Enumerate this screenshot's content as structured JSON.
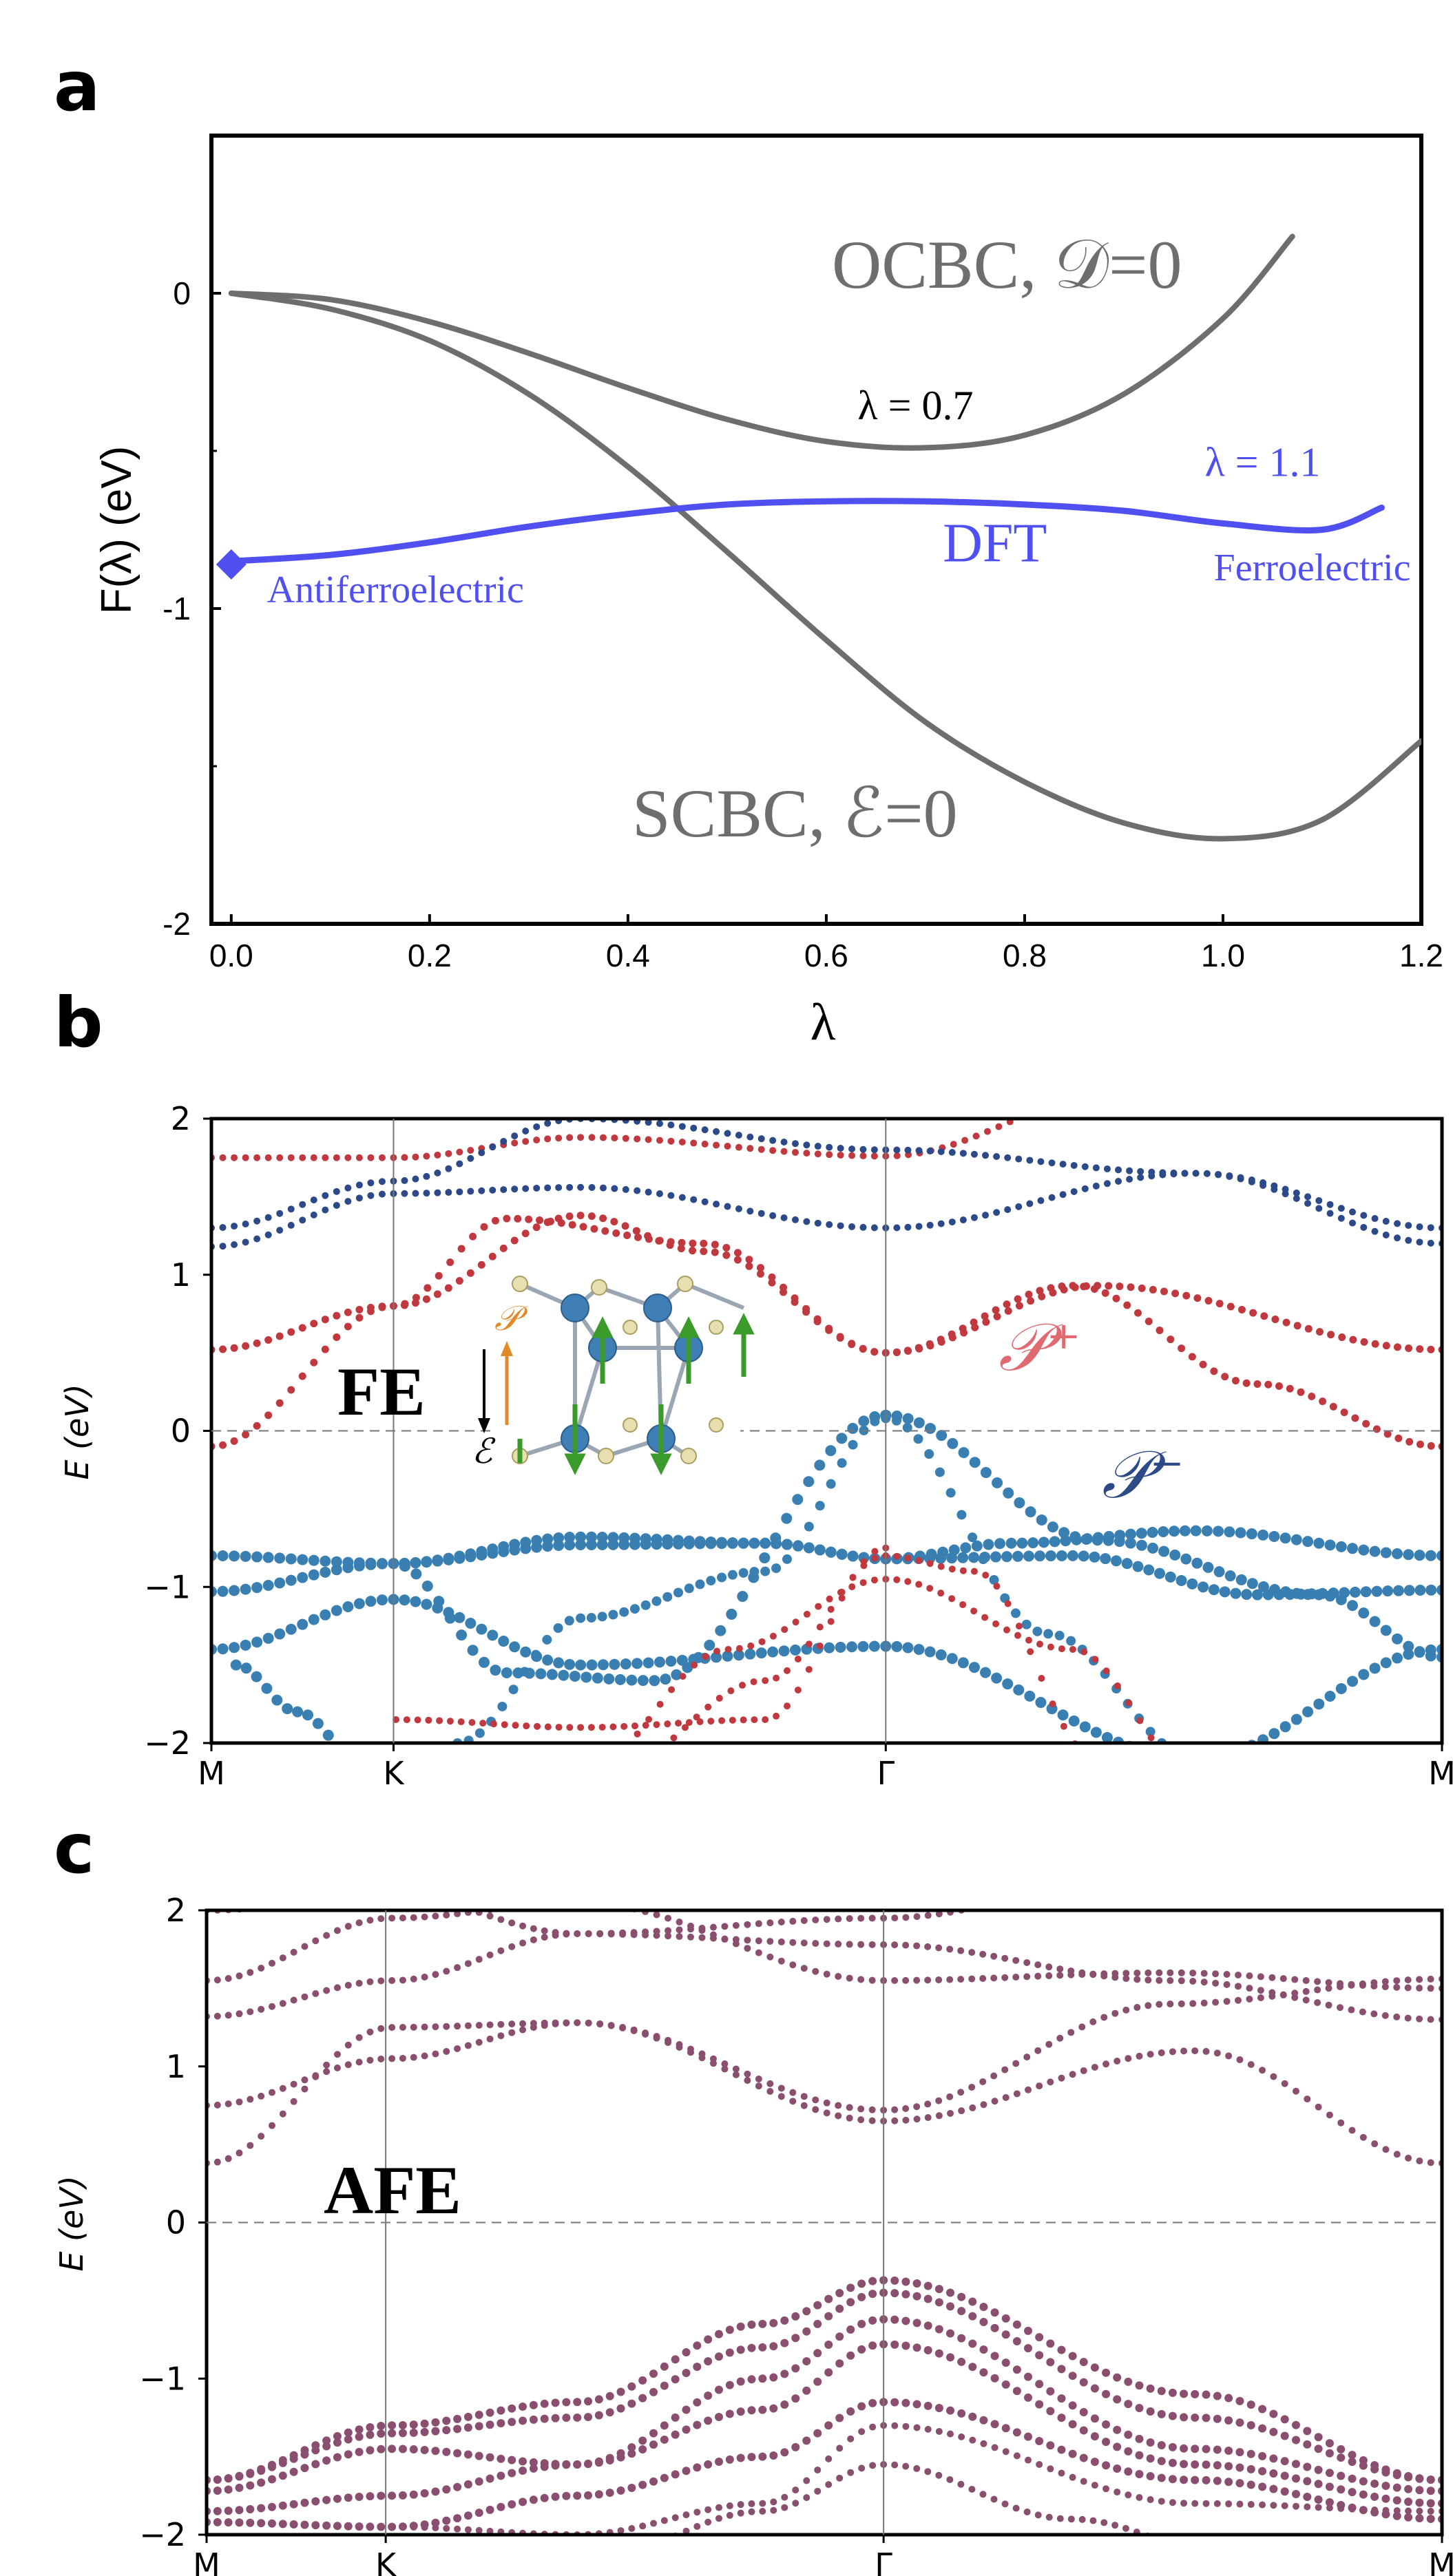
{
  "colors": {
    "gray": "#6e6e6e",
    "blue": "#5050f0",
    "red": "#c0393f",
    "steel": "#3a7fb2",
    "mixed": "#8a4f6e",
    "navy": "#2c4a87",
    "pink": "#e06a72",
    "orange": "#e08a2a",
    "green": "#3a9a2a"
  },
  "panels": {
    "a": "a",
    "b": "b",
    "c": "c"
  },
  "chart_data": [
    {
      "type": "line",
      "panel": "a",
      "xlabel": "λ",
      "ylabel": "F(λ) (eV)",
      "xlim": [
        -0.02,
        1.2
      ],
      "ylim": [
        -2,
        0.5
      ],
      "x_ticks": [
        "0.0",
        "0.2",
        "0.4",
        "0.6",
        "0.8",
        "1.0",
        "1.2"
      ],
      "y_ticks": [
        "0",
        "-1",
        "-2"
      ],
      "series": [
        {
          "name": "OCBC, 𝒟=0",
          "x": [
            0,
            0.1,
            0.2,
            0.3,
            0.4,
            0.5,
            0.6,
            0.7,
            0.8,
            0.9,
            1.0,
            1.07
          ],
          "y": [
            0,
            -0.02,
            -0.09,
            -0.19,
            -0.3,
            -0.4,
            -0.47,
            -0.49,
            -0.45,
            -0.32,
            -0.08,
            0.18
          ]
        },
        {
          "name": "SCBC, ℰ=0",
          "x": [
            0,
            0.1,
            0.2,
            0.3,
            0.4,
            0.5,
            0.6,
            0.7,
            0.8,
            0.9,
            1.0,
            1.1,
            1.2
          ],
          "y": [
            0,
            -0.05,
            -0.15,
            -0.32,
            -0.55,
            -0.82,
            -1.1,
            -1.36,
            -1.55,
            -1.68,
            -1.73,
            -1.67,
            -1.42
          ]
        },
        {
          "name": "DFT",
          "x": [
            0,
            0.1,
            0.2,
            0.3,
            0.4,
            0.5,
            0.6,
            0.7,
            0.8,
            0.9,
            1.0,
            1.1,
            1.16
          ],
          "y": [
            -0.85,
            -0.83,
            -0.79,
            -0.74,
            -0.7,
            -0.67,
            -0.66,
            -0.66,
            -0.67,
            -0.69,
            -0.73,
            -0.75,
            -0.68
          ]
        }
      ],
      "markers": [
        {
          "x": 0.0,
          "y": -0.86,
          "shape": "diamond"
        }
      ],
      "annotations": [
        {
          "text": "λ = 0.7",
          "x": 0.69,
          "y": -0.4
        },
        {
          "text": "λ = 1.1",
          "x": 1.04,
          "y": -0.58
        },
        {
          "text": "DFT",
          "x": 0.77,
          "y": -0.85
        },
        {
          "text": "Antiferroelectric",
          "x": 0.0,
          "y": -0.98
        },
        {
          "text": "Ferroelectric",
          "x": 1.09,
          "y": -0.91
        }
      ]
    },
    {
      "type": "scatter",
      "panel": "b",
      "ylabel": "E (eV)",
      "ylim": [
        -2,
        2
      ],
      "x_ticks": [
        "M",
        "K",
        "Γ",
        "M"
      ],
      "y_ticks": [
        "2",
        "1",
        "0",
        "−1",
        "−2"
      ],
      "label": "FE",
      "legend": [
        "𝒫⁺",
        "𝒫⁻"
      ]
    },
    {
      "type": "scatter",
      "panel": "c",
      "ylabel": "E (eV)",
      "ylim": [
        -2,
        2
      ],
      "x_ticks": [
        "M",
        "K",
        "Γ",
        "M"
      ],
      "y_ticks": [
        "2",
        "1",
        "0",
        "−1",
        "−2"
      ],
      "label": "AFE"
    }
  ],
  "inset": {
    "p_label": "𝒫",
    "e_label": "ℰ"
  }
}
